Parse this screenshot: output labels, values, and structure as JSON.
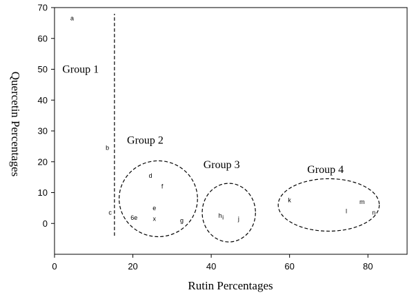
{
  "chart_data": {
    "type": "scatter",
    "xlabel": "Rutin Percentages",
    "ylabel": "Quercetin Percentages",
    "xlim": [
      0,
      90
    ],
    "ylim": [
      -10,
      70
    ],
    "x_ticks": [
      0,
      20,
      40,
      60,
      80
    ],
    "y_ticks": [
      0,
      10,
      20,
      30,
      40,
      50,
      60,
      70
    ],
    "grid": false,
    "legend": "none",
    "points": [
      {
        "label": "a",
        "x": 4.5,
        "y": 66.5
      },
      {
        "label": "b",
        "x": 13.5,
        "y": 24.5
      },
      {
        "label": "c",
        "x": 14.2,
        "y": 3.5
      },
      {
        "label": "6e",
        "x": 20.3,
        "y": 1.8
      },
      {
        "label": "d",
        "x": 24.5,
        "y": 15.5
      },
      {
        "label": "f",
        "x": 27.5,
        "y": 12
      },
      {
        "label": "e",
        "x": 25.5,
        "y": 5
      },
      {
        "label": "x",
        "x": 25.5,
        "y": 1.5
      },
      {
        "label": "g",
        "x": 32.5,
        "y": 1
      },
      {
        "label": "h",
        "x": 42.3,
        "y": 2.5
      },
      {
        "label": "i",
        "x": 43,
        "y": 2
      },
      {
        "label": "j",
        "x": 47,
        "y": 1.5
      },
      {
        "label": "k",
        "x": 60,
        "y": 7.5
      },
      {
        "label": "l",
        "x": 74.5,
        "y": 4
      },
      {
        "label": "m",
        "x": 78.5,
        "y": 7
      },
      {
        "label": "n",
        "x": 81.5,
        "y": 3.5
      }
    ],
    "groups": [
      {
        "label": "Group 1",
        "label_x": 2,
        "label_y": 50
      },
      {
        "label": "Group 2",
        "label_x": 18.5,
        "label_y": 27,
        "ellipse": {
          "cx": 26.5,
          "cy": 8,
          "rx": 10,
          "ry": 12.3
        }
      },
      {
        "label": "Group 3",
        "label_x": 38,
        "label_y": 19,
        "ellipse": {
          "cx": 44.5,
          "cy": 3.5,
          "rx": 6.8,
          "ry": 9.5
        }
      },
      {
        "label": "Group 4",
        "label_x": 64.5,
        "label_y": 17.5,
        "ellipse": {
          "cx": 70,
          "cy": 6,
          "rx": 12.9,
          "ry": 8.5
        }
      }
    ],
    "divider": {
      "x": 15.3,
      "y_from": -4,
      "y_to": 68
    }
  }
}
